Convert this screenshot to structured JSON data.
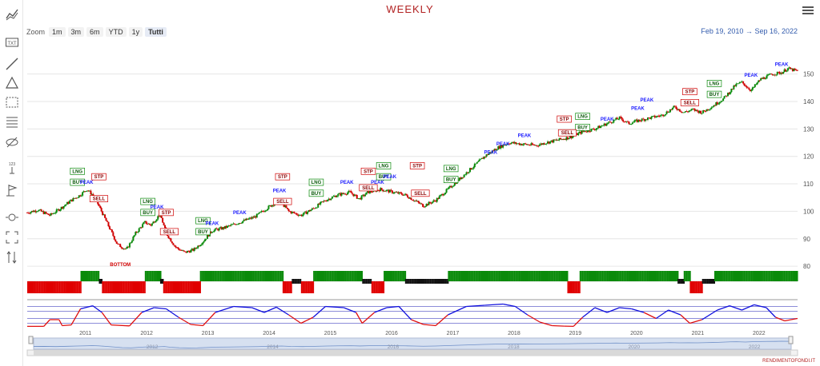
{
  "title": "WEEKLY",
  "zoom": {
    "label": "Zoom",
    "buttons": [
      "1m",
      "3m",
      "6m",
      "YTD",
      "1y",
      "Tutti"
    ],
    "selected": "Tutti"
  },
  "range": {
    "from": "Feb 19, 2010",
    "sep": "→",
    "to": "Sep 16, 2022"
  },
  "credit": "RENDIMENTOFONDI.IT",
  "toolbar": [
    "indicators-icon",
    "text-icon",
    "line-icon",
    "triangle-icon",
    "rectangle-icon",
    "fibonacci-icon",
    "hide-icon",
    "measure-icon",
    "flag-icon",
    "zoom-icon",
    "fullscreen-icon",
    "scale-icon"
  ],
  "toolbar_labels": {
    "text-icon": "TXT",
    "measure-icon": "123"
  },
  "colors": {
    "up": "#0a8a0a",
    "down": "#d00000",
    "peak": "#1a1aff",
    "oscillator_high": "#1010dd",
    "oscillator_low": "#e01010",
    "band": "#6666cc",
    "navigator": "#6f8fc8",
    "title": "#b22222"
  },
  "chart_data": {
    "type": "line",
    "title": "WEEKLY",
    "y_ticks": [
      80,
      90,
      100,
      110,
      120,
      130,
      140,
      150
    ],
    "ylim": [
      78,
      156
    ],
    "x_ticks": [
      "2011",
      "2012",
      "2013",
      "2014",
      "2015",
      "2016",
      "2017",
      "2018",
      "2019",
      "2020",
      "2021",
      "2022"
    ],
    "navigator_ticks": [
      "2012",
      "2014",
      "2016",
      "2018",
      "2020",
      "2022"
    ],
    "xlim": [
      2010.13,
      2022.71
    ],
    "price": [
      [
        2010.13,
        99.5
      ],
      [
        2010.3,
        100.5
      ],
      [
        2010.5,
        98.5
      ],
      [
        2010.7,
        101.5
      ],
      [
        2010.85,
        104
      ],
      [
        2011.0,
        106
      ],
      [
        2011.1,
        108
      ],
      [
        2011.2,
        106
      ],
      [
        2011.3,
        102
      ],
      [
        2011.45,
        95
      ],
      [
        2011.6,
        88
      ],
      [
        2011.75,
        86
      ],
      [
        2011.9,
        92
      ],
      [
        2012.05,
        96
      ],
      [
        2012.15,
        95
      ],
      [
        2012.3,
        99
      ],
      [
        2012.4,
        92
      ],
      [
        2012.55,
        87
      ],
      [
        2012.7,
        85
      ],
      [
        2012.85,
        86
      ],
      [
        2013.0,
        89
      ],
      [
        2013.15,
        93
      ],
      [
        2013.35,
        94
      ],
      [
        2013.6,
        96
      ],
      [
        2013.85,
        98
      ],
      [
        2014.1,
        102
      ],
      [
        2014.25,
        104
      ],
      [
        2014.4,
        100
      ],
      [
        2014.6,
        98.5
      ],
      [
        2014.8,
        101
      ],
      [
        2015.0,
        104
      ],
      [
        2015.2,
        106
      ],
      [
        2015.4,
        107
      ],
      [
        2015.55,
        104.5
      ],
      [
        2015.7,
        107
      ],
      [
        2015.9,
        108
      ],
      [
        2016.1,
        107
      ],
      [
        2016.3,
        106
      ],
      [
        2016.45,
        104
      ],
      [
        2016.6,
        102
      ],
      [
        2016.8,
        104
      ],
      [
        2017.0,
        108
      ],
      [
        2017.2,
        112
      ],
      [
        2017.4,
        116
      ],
      [
        2017.6,
        120
      ],
      [
        2017.8,
        123
      ],
      [
        2018.0,
        125
      ],
      [
        2018.2,
        124.5
      ],
      [
        2018.45,
        124
      ],
      [
        2018.6,
        125
      ],
      [
        2018.8,
        126
      ],
      [
        2019.0,
        127
      ],
      [
        2019.2,
        129
      ],
      [
        2019.4,
        130
      ],
      [
        2019.6,
        132
      ],
      [
        2019.8,
        134
      ],
      [
        2019.95,
        132
      ],
      [
        2020.1,
        133
      ],
      [
        2020.3,
        134
      ],
      [
        2020.5,
        135
      ],
      [
        2020.7,
        138
      ],
      [
        2020.85,
        136
      ],
      [
        2021.0,
        137
      ],
      [
        2021.15,
        136
      ],
      [
        2021.3,
        138
      ],
      [
        2021.5,
        141
      ],
      [
        2021.7,
        146
      ],
      [
        2021.8,
        147
      ],
      [
        2021.95,
        144
      ],
      [
        2022.1,
        148
      ],
      [
        2022.3,
        150
      ],
      [
        2022.45,
        150.5
      ],
      [
        2022.55,
        152
      ],
      [
        2022.71,
        151
      ]
    ],
    "annotations": [
      {
        "text": "LNG",
        "x": 2010.95,
        "y": 114,
        "kind": "box",
        "color": "#0a8a0a"
      },
      {
        "text": "BUY",
        "x": 2010.95,
        "y": 110,
        "kind": "box",
        "color": "#0a8a0a"
      },
      {
        "text": "PEAK",
        "x": 2011.1,
        "y": 110,
        "kind": "text",
        "color": "#1a1aff"
      },
      {
        "text": "STP",
        "x": 2011.3,
        "y": 112,
        "kind": "box",
        "color": "#d00000"
      },
      {
        "text": "SELL",
        "x": 2011.3,
        "y": 104,
        "kind": "box",
        "color": "#d00000"
      },
      {
        "text": "BOTTOM",
        "x": 2011.65,
        "y": 80,
        "kind": "text",
        "color": "#d00000"
      },
      {
        "text": "LNG",
        "x": 2012.1,
        "y": 103,
        "kind": "box",
        "color": "#0a8a0a"
      },
      {
        "text": "BUY",
        "x": 2012.1,
        "y": 99,
        "kind": "box",
        "color": "#0a8a0a"
      },
      {
        "text": "PEAK",
        "x": 2012.25,
        "y": 101,
        "kind": "text",
        "color": "#1a1aff"
      },
      {
        "text": "STP",
        "x": 2012.4,
        "y": 99,
        "kind": "box",
        "color": "#d00000"
      },
      {
        "text": "SELL",
        "x": 2012.45,
        "y": 92,
        "kind": "box",
        "color": "#d00000"
      },
      {
        "text": "LNG",
        "x": 2013.0,
        "y": 96,
        "kind": "box",
        "color": "#0a8a0a"
      },
      {
        "text": "BUY",
        "x": 2013.0,
        "y": 92,
        "kind": "box",
        "color": "#0a8a0a"
      },
      {
        "text": "PEAK",
        "x": 2013.15,
        "y": 95,
        "kind": "text",
        "color": "#1a1aff"
      },
      {
        "text": "PEAK",
        "x": 2013.6,
        "y": 99,
        "kind": "text",
        "color": "#1a1aff"
      },
      {
        "text": "STP",
        "x": 2014.3,
        "y": 112,
        "kind": "box",
        "color": "#d00000"
      },
      {
        "text": "PEAK",
        "x": 2014.25,
        "y": 107,
        "kind": "text",
        "color": "#1a1aff"
      },
      {
        "text": "SELL",
        "x": 2014.3,
        "y": 103,
        "kind": "box",
        "color": "#d00000"
      },
      {
        "text": "LNG",
        "x": 2014.85,
        "y": 110,
        "kind": "box",
        "color": "#0a8a0a"
      },
      {
        "text": "BUY",
        "x": 2014.85,
        "y": 106,
        "kind": "box",
        "color": "#0a8a0a"
      },
      {
        "text": "PEAK",
        "x": 2015.35,
        "y": 110,
        "kind": "text",
        "color": "#1a1aff"
      },
      {
        "text": "STP",
        "x": 2015.7,
        "y": 114,
        "kind": "box",
        "color": "#d00000"
      },
      {
        "text": "SELL",
        "x": 2015.7,
        "y": 108,
        "kind": "box",
        "color": "#d00000"
      },
      {
        "text": "PEAK",
        "x": 2015.85,
        "y": 110,
        "kind": "text",
        "color": "#1a1aff"
      },
      {
        "text": "LNG",
        "x": 2015.95,
        "y": 116,
        "kind": "box",
        "color": "#0a8a0a"
      },
      {
        "text": "BUY",
        "x": 2015.95,
        "y": 112,
        "kind": "box",
        "color": "#0a8a0a"
      },
      {
        "text": "PEAK",
        "x": 2016.05,
        "y": 112,
        "kind": "text",
        "color": "#1a1aff"
      },
      {
        "text": "STP",
        "x": 2016.5,
        "y": 116,
        "kind": "box",
        "color": "#d00000"
      },
      {
        "text": "SELL",
        "x": 2016.55,
        "y": 106,
        "kind": "box",
        "color": "#d00000"
      },
      {
        "text": "LNG",
        "x": 2017.05,
        "y": 115,
        "kind": "box",
        "color": "#0a8a0a"
      },
      {
        "text": "BUY",
        "x": 2017.05,
        "y": 111,
        "kind": "box",
        "color": "#0a8a0a"
      },
      {
        "text": "PEAK",
        "x": 2017.7,
        "y": 121,
        "kind": "text",
        "color": "#1a1aff"
      },
      {
        "text": "PEAK",
        "x": 2017.9,
        "y": 124,
        "kind": "text",
        "color": "#1a1aff"
      },
      {
        "text": "PEAK",
        "x": 2018.25,
        "y": 127,
        "kind": "text",
        "color": "#1a1aff"
      },
      {
        "text": "STP",
        "x": 2018.9,
        "y": 133,
        "kind": "box",
        "color": "#d00000"
      },
      {
        "text": "LNG",
        "x": 2019.2,
        "y": 134,
        "kind": "box",
        "color": "#0a8a0a"
      },
      {
        "text": "BUY",
        "x": 2019.2,
        "y": 130,
        "kind": "box",
        "color": "#0a8a0a"
      },
      {
        "text": "SELL",
        "x": 2018.95,
        "y": 128,
        "kind": "box",
        "color": "#d00000"
      },
      {
        "text": "PEAK",
        "x": 2019.6,
        "y": 133,
        "kind": "text",
        "color": "#1a1aff"
      },
      {
        "text": "PEAK",
        "x": 2020.1,
        "y": 137,
        "kind": "text",
        "color": "#1a1aff"
      },
      {
        "text": "PEAK",
        "x": 2020.25,
        "y": 140,
        "kind": "text",
        "color": "#1a1aff"
      },
      {
        "text": "STP",
        "x": 2020.95,
        "y": 143,
        "kind": "box",
        "color": "#d00000"
      },
      {
        "text": "SELL",
        "x": 2020.95,
        "y": 139,
        "kind": "box",
        "color": "#d00000"
      },
      {
        "text": "LNG",
        "x": 2021.35,
        "y": 146,
        "kind": "box",
        "color": "#0a8a0a"
      },
      {
        "text": "BUY",
        "x": 2021.35,
        "y": 142,
        "kind": "box",
        "color": "#0a8a0a"
      },
      {
        "text": "PEAK",
        "x": 2021.95,
        "y": 149,
        "kind": "text",
        "color": "#1a1aff"
      },
      {
        "text": "PEAK",
        "x": 2022.45,
        "y": 153,
        "kind": "text",
        "color": "#1a1aff"
      }
    ],
    "signal_segments": [
      [
        2010.13,
        2011.0,
        "down"
      ],
      [
        2011.0,
        2011.3,
        "up"
      ],
      [
        2011.3,
        2011.35,
        "flat"
      ],
      [
        2011.35,
        2012.05,
        "down"
      ],
      [
        2012.05,
        2012.3,
        "up"
      ],
      [
        2012.3,
        2012.35,
        "flat"
      ],
      [
        2012.35,
        2012.95,
        "down"
      ],
      [
        2012.95,
        2014.3,
        "up"
      ],
      [
        2014.3,
        2014.45,
        "down"
      ],
      [
        2014.45,
        2014.6,
        "flat"
      ],
      [
        2014.6,
        2014.8,
        "down"
      ],
      [
        2014.8,
        2015.6,
        "up"
      ],
      [
        2015.6,
        2015.75,
        "flat"
      ],
      [
        2015.75,
        2015.95,
        "down"
      ],
      [
        2015.95,
        2016.3,
        "up"
      ],
      [
        2016.3,
        2016.8,
        "flat"
      ],
      [
        2016.8,
        2017.0,
        "flat"
      ],
      [
        2017.0,
        2018.95,
        "up"
      ],
      [
        2018.95,
        2019.15,
        "down"
      ],
      [
        2019.15,
        2020.75,
        "up"
      ],
      [
        2020.75,
        2020.85,
        "flat"
      ],
      [
        2020.85,
        2020.95,
        "up"
      ],
      [
        2020.95,
        2021.15,
        "down"
      ],
      [
        2021.15,
        2021.35,
        "flat"
      ],
      [
        2021.35,
        2022.71,
        "up"
      ]
    ],
    "oscillator": [
      [
        2010.13,
        2
      ],
      [
        2010.4,
        2
      ],
      [
        2010.5,
        30
      ],
      [
        2010.65,
        30
      ],
      [
        2010.7,
        5
      ],
      [
        2010.85,
        8
      ],
      [
        2011.0,
        75
      ],
      [
        2011.2,
        88
      ],
      [
        2011.35,
        60
      ],
      [
        2011.5,
        8
      ],
      [
        2011.8,
        4
      ],
      [
        2012.0,
        60
      ],
      [
        2012.2,
        80
      ],
      [
        2012.4,
        75
      ],
      [
        2012.6,
        40
      ],
      [
        2012.8,
        10
      ],
      [
        2013.0,
        5
      ],
      [
        2013.2,
        60
      ],
      [
        2013.5,
        85
      ],
      [
        2013.8,
        80
      ],
      [
        2014.0,
        60
      ],
      [
        2014.2,
        82
      ],
      [
        2014.4,
        50
      ],
      [
        2014.6,
        15
      ],
      [
        2014.8,
        40
      ],
      [
        2015.0,
        85
      ],
      [
        2015.3,
        80
      ],
      [
        2015.5,
        60
      ],
      [
        2015.6,
        15
      ],
      [
        2015.8,
        60
      ],
      [
        2016.0,
        80
      ],
      [
        2016.2,
        85
      ],
      [
        2016.4,
        30
      ],
      [
        2016.6,
        10
      ],
      [
        2016.8,
        5
      ],
      [
        2017.0,
        50
      ],
      [
        2017.3,
        85
      ],
      [
        2017.6,
        90
      ],
      [
        2017.9,
        95
      ],
      [
        2018.1,
        85
      ],
      [
        2018.3,
        50
      ],
      [
        2018.5,
        20
      ],
      [
        2018.7,
        5
      ],
      [
        2018.9,
        3
      ],
      [
        2019.05,
        2
      ],
      [
        2019.2,
        40
      ],
      [
        2019.4,
        80
      ],
      [
        2019.6,
        60
      ],
      [
        2019.8,
        80
      ],
      [
        2020.0,
        75
      ],
      [
        2020.2,
        60
      ],
      [
        2020.4,
        35
      ],
      [
        2020.6,
        70
      ],
      [
        2020.8,
        50
      ],
      [
        2020.95,
        15
      ],
      [
        2021.15,
        30
      ],
      [
        2021.4,
        70
      ],
      [
        2021.6,
        88
      ],
      [
        2021.8,
        70
      ],
      [
        2022.0,
        92
      ],
      [
        2022.2,
        80
      ],
      [
        2022.35,
        40
      ],
      [
        2022.5,
        25
      ],
      [
        2022.71,
        35
      ]
    ]
  }
}
